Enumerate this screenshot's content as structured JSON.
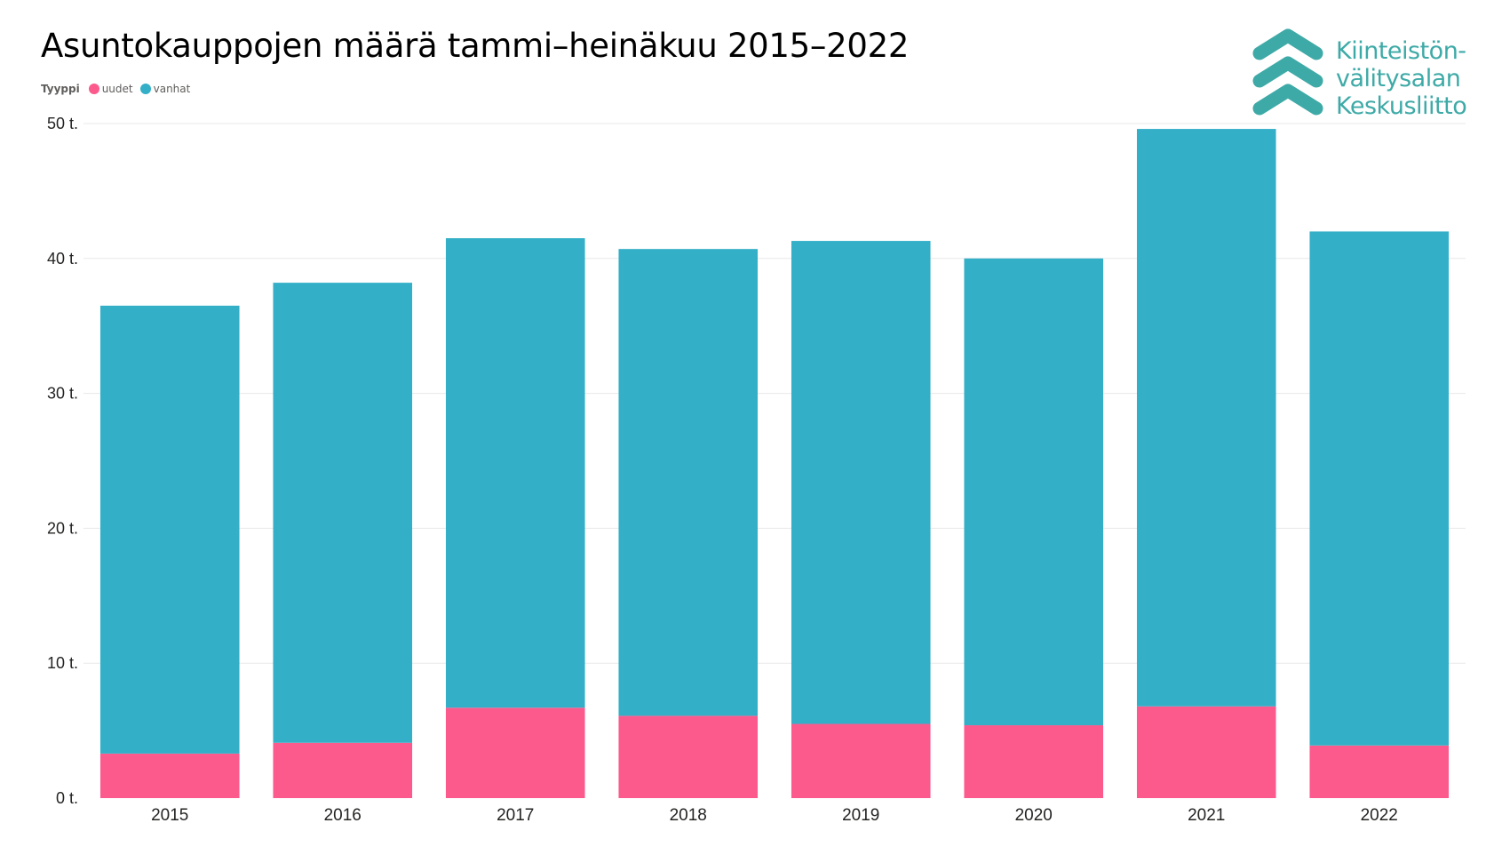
{
  "title": "Asuntokauppojen määrä tammi–heinäkuu 2015–2022",
  "legend": {
    "title": "Tyyppi",
    "items": [
      {
        "label": "uudet",
        "color": "#fc5a8d"
      },
      {
        "label": "vanhat",
        "color": "#33afc7"
      }
    ]
  },
  "logo": {
    "icon": "chevrons-up-icon",
    "color": "#3eaaa7",
    "lines": [
      "Kiinteistön-",
      "välitysalan",
      "Keskusliitto"
    ]
  },
  "chart_data": {
    "type": "bar",
    "stacked": true,
    "categories": [
      "2015",
      "2016",
      "2017",
      "2018",
      "2019",
      "2020",
      "2021",
      "2022"
    ],
    "series": [
      {
        "name": "uudet",
        "color": "#fc5a8d",
        "values": [
          3.3,
          4.1,
          6.7,
          6.1,
          5.5,
          5.4,
          6.8,
          3.9
        ]
      },
      {
        "name": "vanhat",
        "color": "#33afc7",
        "values": [
          33.2,
          34.1,
          34.8,
          34.6,
          35.8,
          34.6,
          42.8,
          38.1
        ]
      }
    ],
    "ylim": [
      0,
      50
    ],
    "yticks": [
      0,
      10,
      20,
      30,
      40,
      50
    ],
    "ytick_labels": [
      "0 t.",
      "10 t.",
      "20 t.",
      "30 t.",
      "40 t.",
      "50 t."
    ],
    "grid": true
  }
}
